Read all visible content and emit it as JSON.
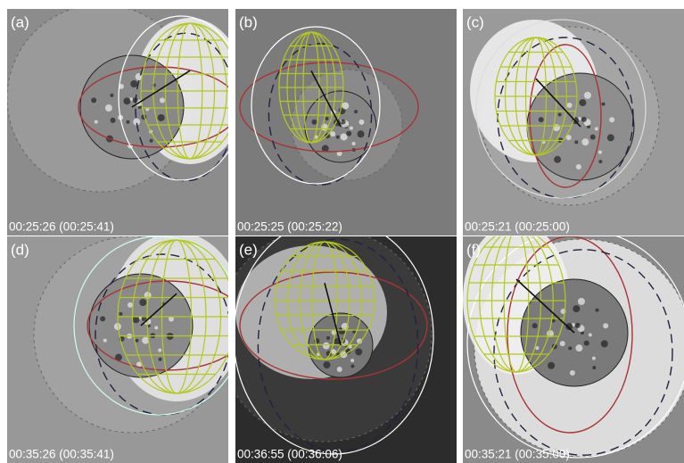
{
  "panels": [
    {
      "label": "(a)",
      "timestamp": "00:25:26 (00:25:41)"
    },
    {
      "label": "(b)",
      "timestamp": "00:25:25 (00:25:22)"
    },
    {
      "label": "(c)",
      "timestamp": "00:25:21 (00:25:00)"
    },
    {
      "label": "(d)",
      "timestamp": "00:35:26 (00:35:41)"
    },
    {
      "label": "(e)",
      "timestamp": "00:36:55 (00:36:06)"
    },
    {
      "label": "(f)",
      "timestamp": "00:35:21 (00:35:00)"
    }
  ]
}
